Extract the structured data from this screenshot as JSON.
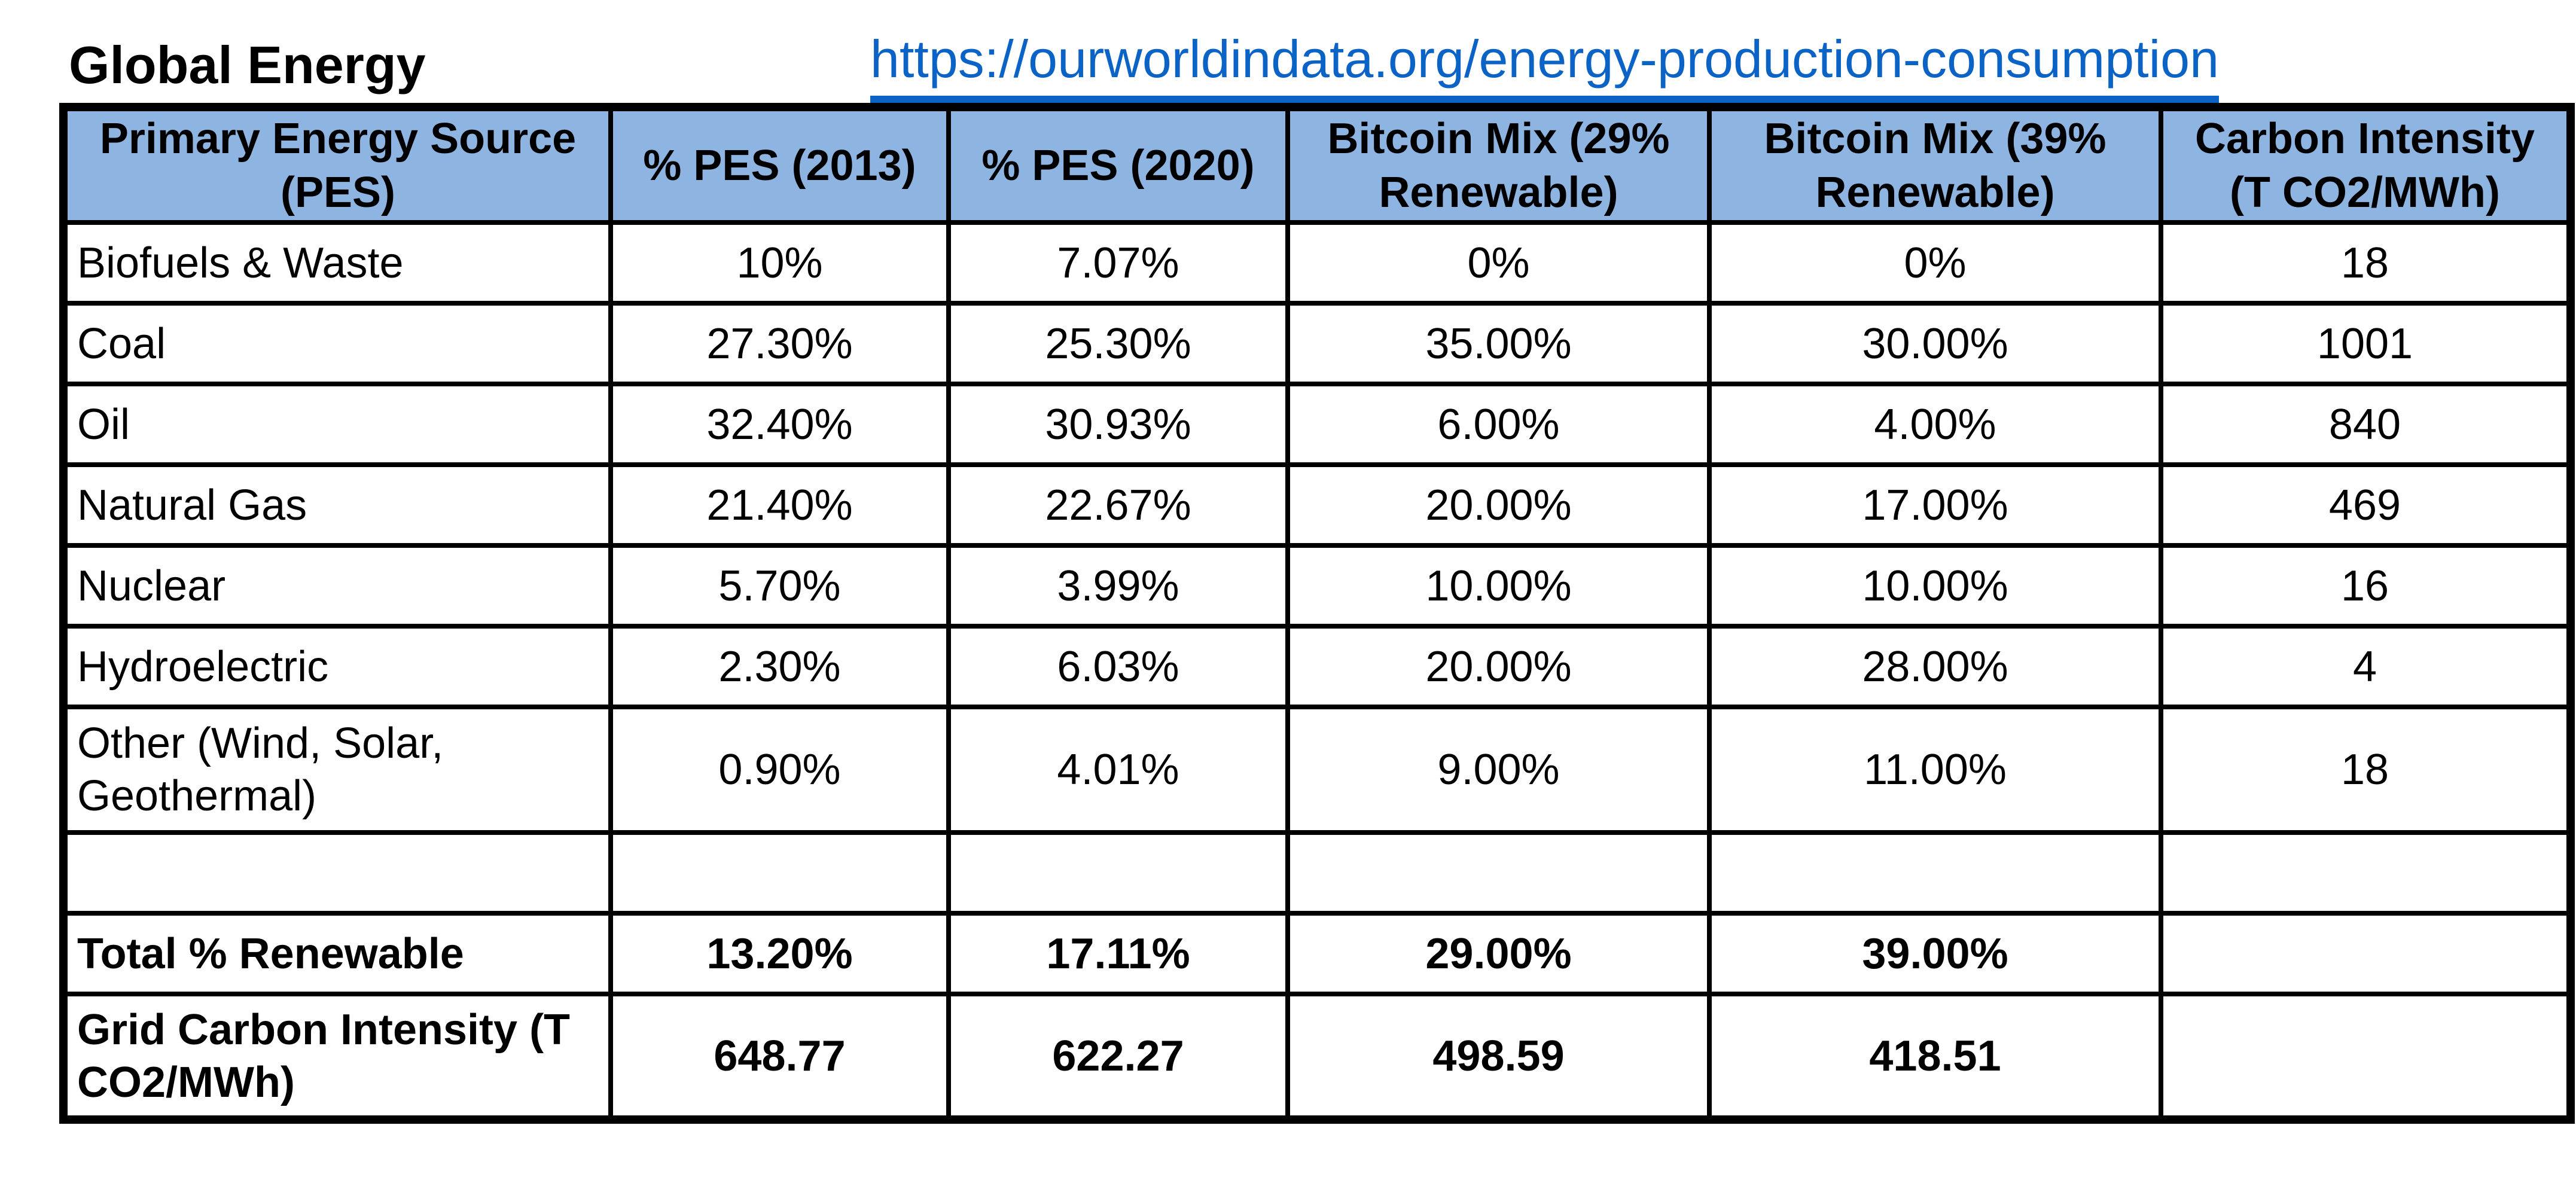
{
  "header": {
    "title": "Global Energy",
    "link_text": "https://ourworldindata.org/energy-production-consumption"
  },
  "table": {
    "columns": [
      "Primary Energy Source (PES)",
      "% PES (2013)",
      "% PES (2020)",
      "Bitcoin Mix (29% Renewable)",
      "Bitcoin Mix (39% Renewable)",
      "Carbon Intensity (T CO2/MWh)"
    ],
    "rows": [
      {
        "label": "Biofuels & Waste",
        "values": [
          "10%",
          "7.07%",
          "0%",
          "0%",
          "18"
        ],
        "bold": false,
        "tall": false
      },
      {
        "label": "Coal",
        "values": [
          "27.30%",
          "25.30%",
          "35.00%",
          "30.00%",
          "1001"
        ],
        "bold": false,
        "tall": false
      },
      {
        "label": "Oil",
        "values": [
          "32.40%",
          "30.93%",
          "6.00%",
          "4.00%",
          "840"
        ],
        "bold": false,
        "tall": false
      },
      {
        "label": "Natural Gas",
        "values": [
          "21.40%",
          "22.67%",
          "20.00%",
          "17.00%",
          "469"
        ],
        "bold": false,
        "tall": false
      },
      {
        "label": "Nuclear",
        "values": [
          "5.70%",
          "3.99%",
          "10.00%",
          "10.00%",
          "16"
        ],
        "bold": false,
        "tall": false
      },
      {
        "label": "Hydroelectric",
        "values": [
          "2.30%",
          "6.03%",
          "20.00%",
          "28.00%",
          "4"
        ],
        "bold": false,
        "tall": false
      },
      {
        "label": "Other (Wind, Solar, Geothermal)",
        "values": [
          "0.90%",
          "4.01%",
          "9.00%",
          "11.00%",
          "18"
        ],
        "bold": false,
        "tall": true
      },
      {
        "label": "",
        "values": [
          "",
          "",
          "",
          "",
          ""
        ],
        "bold": false,
        "tall": false
      },
      {
        "label": "Total % Renewable",
        "values": [
          "13.20%",
          "17.11%",
          "29.00%",
          "39.00%",
          ""
        ],
        "bold": true,
        "tall": false
      },
      {
        "label": "Grid Carbon Intensity (T CO2/MWh)",
        "values": [
          "648.77",
          "622.27",
          "498.59",
          "418.51",
          ""
        ],
        "bold": true,
        "tall": true
      }
    ]
  },
  "colors": {
    "header_bg": "#8EB4E2",
    "link_blue": "#0B63C5",
    "border": "#000000"
  }
}
